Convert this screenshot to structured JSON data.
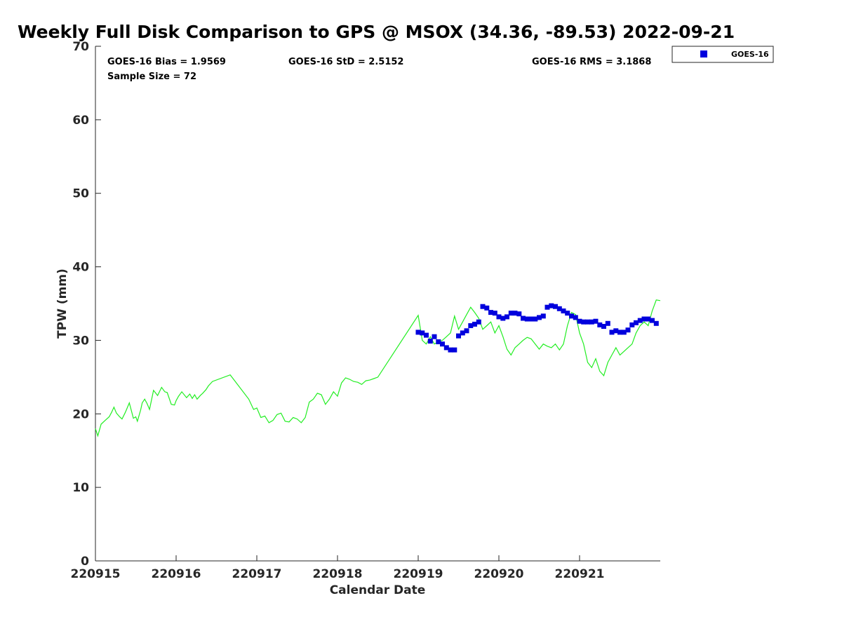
{
  "chart_data": {
    "type": "line",
    "title": "Weekly Full Disk Comparison to GPS @ MSOX (34.36, -89.53) 2022-09-21",
    "xlabel": "Calendar Date",
    "ylabel": "TPW (mm)",
    "xlim": [
      0,
      7
    ],
    "ylim": [
      0,
      70
    ],
    "x_ticks": [
      {
        "value": 0,
        "label": "220915"
      },
      {
        "value": 1,
        "label": "220916"
      },
      {
        "value": 2,
        "label": "220917"
      },
      {
        "value": 3,
        "label": "220918"
      },
      {
        "value": 4,
        "label": "220919"
      },
      {
        "value": 5,
        "label": "220920"
      },
      {
        "value": 6,
        "label": "220921"
      }
    ],
    "y_ticks": [
      {
        "value": 0,
        "label": "0"
      },
      {
        "value": 10,
        "label": "10"
      },
      {
        "value": 20,
        "label": "20"
      },
      {
        "value": 30,
        "label": "30"
      },
      {
        "value": 40,
        "label": "40"
      },
      {
        "value": 50,
        "label": "50"
      },
      {
        "value": 60,
        "label": "60"
      },
      {
        "value": 70,
        "label": "70"
      }
    ],
    "stats": {
      "bias": "GOES-16 Bias = 1.9569",
      "std": "GOES-16 StD = 2.5152",
      "rms": "GOES-16 RMS = 3.1868",
      "sample": "Sample Size = 72"
    },
    "legend": {
      "position": "top-right, outside",
      "label": "GOES-16"
    },
    "series": [
      {
        "name": "GPS",
        "kind": "line",
        "color": "#22ee22",
        "x": [
          0.0,
          0.03,
          0.07,
          0.12,
          0.17,
          0.2,
          0.23,
          0.26,
          0.3,
          0.33,
          0.37,
          0.42,
          0.47,
          0.5,
          0.52,
          0.56,
          0.58,
          0.61,
          0.64,
          0.67,
          0.72,
          0.77,
          0.82,
          0.86,
          0.89,
          0.94,
          0.98,
          1.0,
          1.03,
          1.07,
          1.13,
          1.17,
          1.2,
          1.23,
          1.26,
          1.3,
          1.33,
          1.37,
          1.4,
          1.45,
          1.67,
          1.9,
          1.96,
          2.0,
          2.05,
          2.1,
          2.15,
          2.2,
          2.25,
          2.3,
          2.35,
          2.4,
          2.45,
          2.5,
          2.55,
          2.6,
          2.65,
          2.7,
          2.75,
          2.8,
          2.85,
          2.9,
          2.95,
          3.0,
          3.05,
          3.1,
          3.15,
          3.2,
          3.25,
          3.3,
          3.35,
          3.4,
          3.45,
          3.5,
          4.0,
          4.05,
          4.1,
          4.15,
          4.2,
          4.25,
          4.3,
          4.35,
          4.4,
          4.45,
          4.5,
          4.55,
          4.6,
          4.65,
          4.7,
          4.75,
          4.8,
          4.85,
          4.9,
          4.95,
          5.0,
          5.05,
          5.1,
          5.15,
          5.2,
          5.25,
          5.3,
          5.35,
          5.4,
          5.45,
          5.5,
          5.55,
          5.6,
          5.65,
          5.7,
          5.75,
          5.8,
          5.85,
          5.9,
          5.95,
          6.0,
          6.05,
          6.1,
          6.15,
          6.2,
          6.25,
          6.3,
          6.35,
          6.4,
          6.45,
          6.5,
          6.55,
          6.6,
          6.65,
          6.7,
          6.75,
          6.8,
          6.85,
          6.9,
          6.95,
          7.0
        ],
        "y": [
          18.0,
          17.0,
          18.6,
          19.1,
          19.6,
          20.2,
          20.9,
          20.1,
          19.6,
          19.3,
          20.2,
          21.5,
          19.4,
          19.6,
          19.0,
          20.5,
          21.5,
          22.0,
          21.4,
          20.6,
          23.2,
          22.5,
          23.6,
          23.0,
          22.9,
          21.3,
          21.2,
          21.8,
          22.4,
          23.0,
          22.2,
          22.7,
          22.1,
          22.6,
          22.0,
          22.5,
          22.8,
          23.3,
          23.8,
          24.4,
          25.3,
          22.0,
          20.6,
          20.8,
          19.5,
          19.7,
          18.8,
          19.1,
          19.9,
          20.1,
          19.0,
          18.9,
          19.5,
          19.3,
          18.8,
          19.5,
          21.6,
          22.0,
          22.8,
          22.6,
          21.3,
          22.0,
          23.0,
          22.4,
          24.2,
          24.9,
          24.7,
          24.4,
          24.3,
          24.0,
          24.5,
          24.6,
          24.8,
          25.0,
          33.4,
          30.0,
          29.5,
          30.5,
          29.5,
          29.8,
          30.0,
          30.5,
          31.0,
          33.3,
          31.5,
          32.5,
          33.5,
          34.5,
          33.8,
          33.0,
          31.5,
          32.0,
          32.5,
          31.0,
          32.0,
          30.5,
          28.8,
          28.0,
          29.0,
          29.5,
          30.0,
          30.4,
          30.2,
          29.5,
          28.8,
          29.5,
          29.2,
          29.0,
          29.5,
          28.7,
          29.5,
          32.0,
          33.8,
          33.5,
          31.0,
          29.5,
          27.0,
          26.3,
          27.5,
          25.8,
          25.2,
          27.0,
          28.0,
          29.0,
          28.0,
          28.5,
          29.0,
          29.5,
          31.0,
          32.0,
          32.5,
          32.0,
          34.0,
          35.5,
          35.4
        ]
      },
      {
        "name": "GOES-16",
        "kind": "marker",
        "color": "#0000dd",
        "x": [
          4.0,
          4.05,
          4.1,
          4.15,
          4.2,
          4.25,
          4.3,
          4.35,
          4.4,
          4.45,
          4.5,
          4.55,
          4.6,
          4.65,
          4.7,
          4.75,
          4.8,
          4.85,
          4.9,
          4.95,
          5.0,
          5.05,
          5.1,
          5.15,
          5.2,
          5.25,
          5.3,
          5.35,
          5.4,
          5.45,
          5.5,
          5.55,
          5.6,
          5.65,
          5.7,
          5.75,
          5.8,
          5.85,
          5.9,
          5.95,
          6.0,
          6.05,
          6.1,
          6.15,
          6.2,
          6.25,
          6.3,
          6.35,
          6.4,
          6.45,
          6.5,
          6.55,
          6.6,
          6.65,
          6.7,
          6.75,
          6.8,
          6.85,
          6.9,
          6.95
        ],
        "y": [
          31.1,
          31.0,
          30.7,
          29.9,
          30.5,
          29.8,
          29.5,
          29.0,
          28.7,
          28.7,
          30.6,
          31.0,
          31.3,
          32.0,
          32.2,
          32.5,
          34.6,
          34.4,
          33.8,
          33.7,
          33.2,
          33.0,
          33.2,
          33.7,
          33.7,
          33.6,
          33.0,
          32.9,
          32.9,
          32.9,
          33.1,
          33.3,
          34.5,
          34.7,
          34.6,
          34.3,
          34.0,
          33.7,
          33.3,
          33.1,
          32.6,
          32.5,
          32.5,
          32.5,
          32.6,
          32.1,
          31.9,
          32.3,
          31.1,
          31.3,
          31.1,
          31.1,
          31.4,
          32.1,
          32.4,
          32.7,
          32.9,
          32.9,
          32.7,
          32.3
        ]
      }
    ]
  }
}
